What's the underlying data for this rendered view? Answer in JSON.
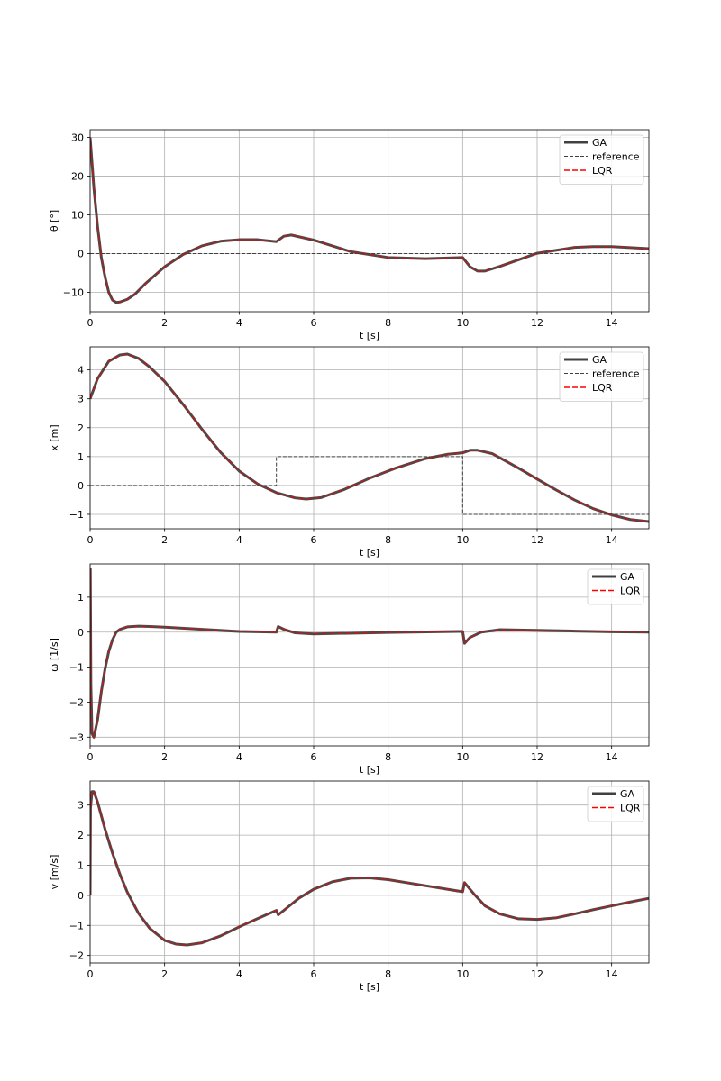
{
  "colors": {
    "ga": "#404040",
    "lqr": "#ff0000",
    "reference": "#404040",
    "grid": "#b0b0b0",
    "axes": "#000000"
  },
  "chart_data": [
    {
      "type": "line",
      "xlabel": "t [s]",
      "ylabel": "θ [°]",
      "xlim": [
        0,
        15
      ],
      "ylim": [
        -15,
        32
      ],
      "xticks": [
        0,
        2,
        4,
        6,
        8,
        10,
        12,
        14
      ],
      "yticks": [
        -10,
        0,
        10,
        20,
        30
      ],
      "grid": true,
      "legend_position": "top-right",
      "legend": [
        "GA",
        "reference",
        "LQR"
      ],
      "series": [
        {
          "name": "GA",
          "x": [
            0,
            0.1,
            0.2,
            0.3,
            0.4,
            0.5,
            0.6,
            0.7,
            0.8,
            1.0,
            1.2,
            1.5,
            2.0,
            2.5,
            3.0,
            3.5,
            4.0,
            4.5,
            5.0,
            5.2,
            5.4,
            6.0,
            7.0,
            8.0,
            9.0,
            10.0,
            10.2,
            10.4,
            10.6,
            11.0,
            12.0,
            13.0,
            13.5,
            14.0,
            15.0
          ],
          "y": [
            30,
            17,
            7,
            -1,
            -6,
            -10,
            -12,
            -12.6,
            -12.5,
            -11.8,
            -10.5,
            -7.6,
            -3.4,
            -0.2,
            2,
            3.2,
            3.6,
            3.6,
            3.1,
            4.5,
            4.8,
            3.5,
            0.5,
            -1,
            -1.3,
            -1,
            -3.4,
            -4.5,
            -4.5,
            -3.3,
            0.1,
            1.6,
            1.8,
            1.8,
            1.3
          ]
        },
        {
          "name": "reference",
          "x": [
            0,
            15
          ],
          "y": [
            0,
            0
          ]
        },
        {
          "name": "LQR",
          "x": [
            0,
            0.1,
            0.2,
            0.3,
            0.4,
            0.5,
            0.6,
            0.7,
            0.8,
            1.0,
            1.2,
            1.5,
            2.0,
            2.5,
            3.0,
            3.5,
            4.0,
            4.5,
            5.0,
            5.2,
            5.4,
            6.0,
            7.0,
            8.0,
            9.0,
            10.0,
            10.2,
            10.4,
            10.6,
            11.0,
            12.0,
            13.0,
            13.5,
            14.0,
            15.0
          ],
          "y": [
            30,
            17,
            7,
            -1,
            -6,
            -10,
            -12,
            -12.6,
            -12.5,
            -11.8,
            -10.5,
            -7.6,
            -3.4,
            -0.2,
            2,
            3.2,
            3.6,
            3.6,
            3.1,
            4.5,
            4.8,
            3.5,
            0.5,
            -1,
            -1.3,
            -1,
            -3.4,
            -4.5,
            -4.5,
            -3.3,
            0.1,
            1.6,
            1.8,
            1.8,
            1.3
          ]
        }
      ]
    },
    {
      "type": "line",
      "xlabel": "t [s]",
      "ylabel": "x [m]",
      "xlim": [
        0,
        15
      ],
      "ylim": [
        -1.5,
        4.8
      ],
      "xticks": [
        0,
        2,
        4,
        6,
        8,
        10,
        12,
        14
      ],
      "yticks": [
        -1,
        0,
        1,
        2,
        3,
        4
      ],
      "grid": true,
      "legend_position": "top-right",
      "legend": [
        "GA",
        "reference",
        "LQR"
      ],
      "series": [
        {
          "name": "GA",
          "x": [
            0,
            0.2,
            0.5,
            0.8,
            1.0,
            1.3,
            1.6,
            2.0,
            2.5,
            3.0,
            3.5,
            4.0,
            4.5,
            5.0,
            5.5,
            5.8,
            6.2,
            6.8,
            7.5,
            8.2,
            9.0,
            9.6,
            10.0,
            10.2,
            10.4,
            10.8,
            11.5,
            12.0,
            12.5,
            13.0,
            13.5,
            14.0,
            14.5,
            15.0
          ],
          "y": [
            3,
            3.7,
            4.3,
            4.52,
            4.55,
            4.4,
            4.1,
            3.6,
            2.8,
            1.95,
            1.15,
            0.5,
            0.05,
            -0.25,
            -0.43,
            -0.47,
            -0.42,
            -0.15,
            0.25,
            0.6,
            0.93,
            1.08,
            1.13,
            1.22,
            1.22,
            1.1,
            0.6,
            0.22,
            -0.15,
            -0.5,
            -0.8,
            -1.02,
            -1.18,
            -1.25
          ]
        },
        {
          "name": "reference",
          "x": [
            0,
            5,
            5,
            10,
            10,
            15
          ],
          "y": [
            0,
            0,
            1,
            1,
            -1,
            -1
          ]
        },
        {
          "name": "LQR",
          "x": [
            0,
            0.2,
            0.5,
            0.8,
            1.0,
            1.3,
            1.6,
            2.0,
            2.5,
            3.0,
            3.5,
            4.0,
            4.5,
            5.0,
            5.5,
            5.8,
            6.2,
            6.8,
            7.5,
            8.2,
            9.0,
            9.6,
            10.0,
            10.2,
            10.4,
            10.8,
            11.5,
            12.0,
            12.5,
            13.0,
            13.5,
            14.0,
            14.5,
            15.0
          ],
          "y": [
            3,
            3.7,
            4.3,
            4.52,
            4.55,
            4.4,
            4.1,
            3.6,
            2.8,
            1.95,
            1.15,
            0.5,
            0.05,
            -0.25,
            -0.43,
            -0.47,
            -0.42,
            -0.15,
            0.25,
            0.6,
            0.93,
            1.08,
            1.13,
            1.22,
            1.22,
            1.1,
            0.6,
            0.22,
            -0.15,
            -0.5,
            -0.8,
            -1.02,
            -1.18,
            -1.25
          ]
        }
      ]
    },
    {
      "type": "line",
      "xlabel": "t [s]",
      "ylabel": "ω [1/s]",
      "xlim": [
        0,
        15
      ],
      "ylim": [
        -3.25,
        1.95
      ],
      "xticks": [
        0,
        2,
        4,
        6,
        8,
        10,
        12,
        14
      ],
      "yticks": [
        -3,
        -2,
        -1,
        0,
        1
      ],
      "grid": true,
      "legend_position": "top-right",
      "legend": [
        "GA",
        "LQR"
      ],
      "series": [
        {
          "name": "GA",
          "x": [
            0,
            0.005,
            0.02,
            0.05,
            0.1,
            0.2,
            0.3,
            0.4,
            0.5,
            0.6,
            0.7,
            0.8,
            1.0,
            1.3,
            1.6,
            2.0,
            3.0,
            4.0,
            5.0,
            5.05,
            5.2,
            5.5,
            6.0,
            8.0,
            10.0,
            10.05,
            10.2,
            10.5,
            11.0,
            12.0,
            13.0,
            14.0,
            15.0
          ],
          "y": [
            0,
            1.8,
            -1.5,
            -2.9,
            -3.0,
            -2.5,
            -1.7,
            -1.05,
            -0.55,
            -0.22,
            0,
            0.08,
            0.15,
            0.17,
            0.16,
            0.14,
            0.08,
            0.02,
            0,
            0.16,
            0.08,
            -0.02,
            -0.05,
            -0.01,
            0.02,
            -0.32,
            -0.15,
            0,
            0.07,
            0.05,
            0.03,
            0.01,
            0
          ]
        },
        {
          "name": "LQR",
          "x": [
            0,
            0.005,
            0.02,
            0.05,
            0.1,
            0.2,
            0.3,
            0.4,
            0.5,
            0.6,
            0.7,
            0.8,
            1.0,
            1.3,
            1.6,
            2.0,
            3.0,
            4.0,
            5.0,
            5.05,
            5.2,
            5.5,
            6.0,
            8.0,
            10.0,
            10.05,
            10.2,
            10.5,
            11.0,
            12.0,
            13.0,
            14.0,
            15.0
          ],
          "y": [
            0,
            1.8,
            -1.5,
            -2.9,
            -3.0,
            -2.5,
            -1.7,
            -1.05,
            -0.55,
            -0.22,
            0,
            0.08,
            0.15,
            0.17,
            0.16,
            0.14,
            0.08,
            0.02,
            0,
            0.16,
            0.08,
            -0.02,
            -0.05,
            -0.01,
            0.02,
            -0.32,
            -0.15,
            0,
            0.07,
            0.05,
            0.03,
            0.01,
            0
          ]
        }
      ]
    },
    {
      "type": "line",
      "xlabel": "t [s]",
      "ylabel": "v [m/s]",
      "xlim": [
        0,
        15
      ],
      "ylim": [
        -2.25,
        3.8
      ],
      "xticks": [
        0,
        2,
        4,
        6,
        8,
        10,
        12,
        14
      ],
      "yticks": [
        -2,
        -1,
        0,
        1,
        2,
        3
      ],
      "grid": true,
      "legend_position": "top-right",
      "legend": [
        "GA",
        "LQR"
      ],
      "series": [
        {
          "name": "GA",
          "x": [
            0,
            0.01,
            0.05,
            0.1,
            0.2,
            0.4,
            0.6,
            0.8,
            1.0,
            1.3,
            1.6,
            2.0,
            2.3,
            2.6,
            3.0,
            3.5,
            4.0,
            4.5,
            5.0,
            5.05,
            5.3,
            5.6,
            6.0,
            6.5,
            7.0,
            7.5,
            8.0,
            9.0,
            10.0,
            10.05,
            10.3,
            10.6,
            11.0,
            11.5,
            12.0,
            12.5,
            13.0,
            13.5,
            14.0,
            14.5,
            15.0
          ],
          "y": [
            0,
            2.9,
            3.45,
            3.45,
            3.1,
            2.2,
            1.4,
            0.7,
            0.1,
            -0.6,
            -1.1,
            -1.5,
            -1.62,
            -1.65,
            -1.58,
            -1.35,
            -1.05,
            -0.77,
            -0.5,
            -0.65,
            -0.4,
            -0.1,
            0.2,
            0.45,
            0.57,
            0.58,
            0.52,
            0.32,
            0.12,
            0.42,
            0.05,
            -0.35,
            -0.62,
            -0.78,
            -0.8,
            -0.75,
            -0.62,
            -0.48,
            -0.35,
            -0.22,
            -0.1
          ]
        },
        {
          "name": "LQR",
          "x": [
            0,
            0.01,
            0.05,
            0.1,
            0.2,
            0.4,
            0.6,
            0.8,
            1.0,
            1.3,
            1.6,
            2.0,
            2.3,
            2.6,
            3.0,
            3.5,
            4.0,
            4.5,
            5.0,
            5.05,
            5.3,
            5.6,
            6.0,
            6.5,
            7.0,
            7.5,
            8.0,
            9.0,
            10.0,
            10.05,
            10.3,
            10.6,
            11.0,
            11.5,
            12.0,
            12.5,
            13.0,
            13.5,
            14.0,
            14.5,
            15.0
          ],
          "y": [
            0,
            2.9,
            3.45,
            3.45,
            3.1,
            2.2,
            1.4,
            0.7,
            0.1,
            -0.6,
            -1.1,
            -1.5,
            -1.62,
            -1.65,
            -1.58,
            -1.35,
            -1.05,
            -0.77,
            -0.5,
            -0.65,
            -0.4,
            -0.1,
            0.2,
            0.45,
            0.57,
            0.58,
            0.52,
            0.32,
            0.12,
            0.42,
            0.05,
            -0.35,
            -0.62,
            -0.78,
            -0.8,
            -0.75,
            -0.62,
            -0.48,
            -0.35,
            -0.22,
            -0.1
          ]
        }
      ]
    }
  ]
}
